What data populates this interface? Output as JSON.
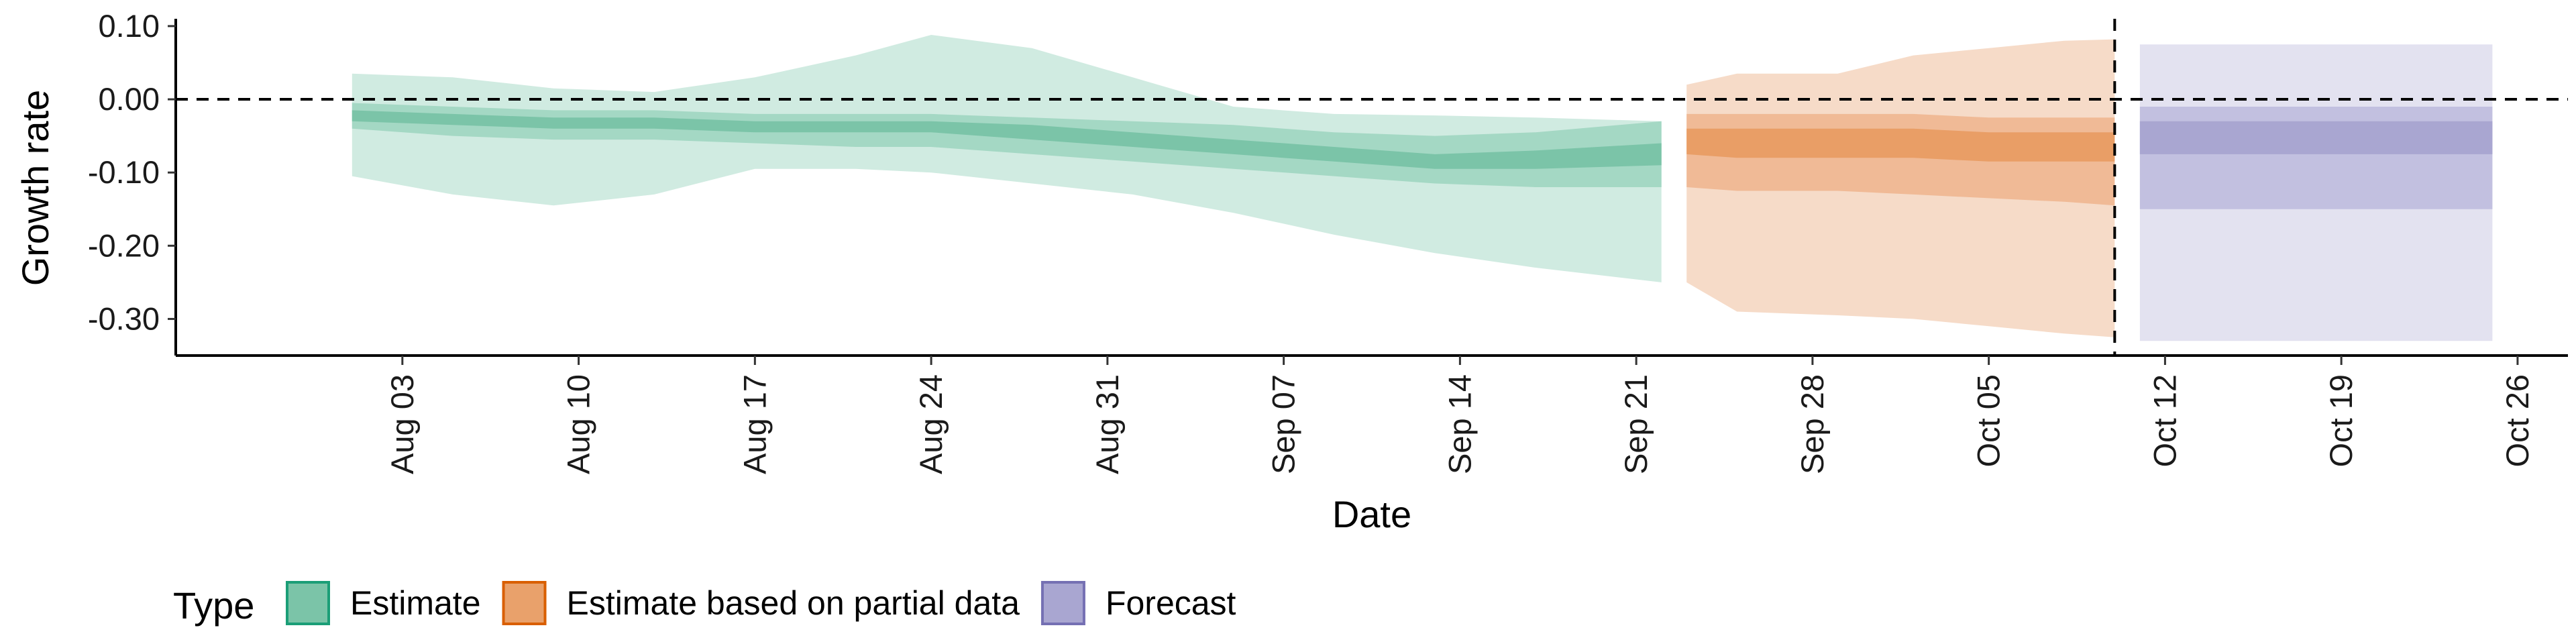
{
  "chart_data": {
    "type": "area",
    "xlabel": "Date",
    "ylabel": "Growth rate",
    "ylim": [
      -0.35,
      0.11
    ],
    "y_ticks": [
      {
        "value": 0.1,
        "label": "0.10"
      },
      {
        "value": 0.0,
        "label": "0.00"
      },
      {
        "value": -0.1,
        "label": "-0.10"
      },
      {
        "value": -0.2,
        "label": "-0.20"
      },
      {
        "value": -0.3,
        "label": "-0.30"
      }
    ],
    "x_range": [
      "2020-07-25",
      "2020-10-28"
    ],
    "x_ticks": [
      {
        "date": "2020-08-03",
        "label": "Aug 03"
      },
      {
        "date": "2020-08-10",
        "label": "Aug 10"
      },
      {
        "date": "2020-08-17",
        "label": "Aug 17"
      },
      {
        "date": "2020-08-24",
        "label": "Aug 24"
      },
      {
        "date": "2020-08-31",
        "label": "Aug 31"
      },
      {
        "date": "2020-09-07",
        "label": "Sep 07"
      },
      {
        "date": "2020-09-14",
        "label": "Sep 14"
      },
      {
        "date": "2020-09-21",
        "label": "Sep 21"
      },
      {
        "date": "2020-09-28",
        "label": "Sep 28"
      },
      {
        "date": "2020-10-05",
        "label": "Oct 05"
      },
      {
        "date": "2020-10-12",
        "label": "Oct 12"
      },
      {
        "date": "2020-10-19",
        "label": "Oct 19"
      },
      {
        "date": "2020-10-26",
        "label": "Oct 26"
      }
    ],
    "reference_lines": [
      {
        "axis": "y",
        "value": 0.0,
        "style": "dashed"
      },
      {
        "axis": "x",
        "date": "2020-10-10",
        "style": "dashed"
      }
    ],
    "grid": false,
    "legend": {
      "title": "Type",
      "position": "bottom",
      "entries": [
        {
          "label": "Estimate",
          "fill": "#7bc4a8",
          "stroke": "#1b9e77"
        },
        {
          "label": "Estimate based on partial data",
          "fill": "#e9a16b",
          "stroke": "#d95f02"
        },
        {
          "label": "Forecast",
          "fill": "#a9a6d1",
          "stroke": "#7570b3"
        }
      ]
    },
    "series": [
      {
        "name": "Estimate",
        "colors": {
          "outer": "#d0ebe1",
          "mid": "#a4d8c4",
          "inner": "#7bc4a8"
        },
        "x": [
          "2020-08-01",
          "2020-08-05",
          "2020-08-09",
          "2020-08-13",
          "2020-08-17",
          "2020-08-21",
          "2020-08-24",
          "2020-08-28",
          "2020-09-01",
          "2020-09-05",
          "2020-09-09",
          "2020-09-13",
          "2020-09-17",
          "2020-09-22"
        ],
        "outer_upper": [
          0.035,
          0.03,
          0.015,
          0.01,
          0.03,
          0.06,
          0.088,
          0.07,
          0.03,
          -0.01,
          -0.02,
          -0.022,
          -0.025,
          -0.03
        ],
        "outer_lower": [
          -0.105,
          -0.13,
          -0.145,
          -0.13,
          -0.095,
          -0.095,
          -0.1,
          -0.115,
          -0.13,
          -0.155,
          -0.185,
          -0.21,
          -0.23,
          -0.25
        ],
        "mid_upper": [
          -0.005,
          -0.01,
          -0.015,
          -0.015,
          -0.02,
          -0.02,
          -0.02,
          -0.025,
          -0.03,
          -0.035,
          -0.045,
          -0.05,
          -0.045,
          -0.03
        ],
        "mid_lower": [
          -0.04,
          -0.05,
          -0.055,
          -0.055,
          -0.06,
          -0.065,
          -0.065,
          -0.075,
          -0.085,
          -0.095,
          -0.105,
          -0.115,
          -0.12,
          -0.12
        ],
        "inner_upper": [
          -0.015,
          -0.02,
          -0.025,
          -0.025,
          -0.03,
          -0.03,
          -0.03,
          -0.035,
          -0.045,
          -0.055,
          -0.065,
          -0.075,
          -0.07,
          -0.06
        ],
        "inner_lower": [
          -0.03,
          -0.035,
          -0.04,
          -0.04,
          -0.045,
          -0.045,
          -0.045,
          -0.055,
          -0.065,
          -0.075,
          -0.085,
          -0.095,
          -0.095,
          -0.09
        ]
      },
      {
        "name": "Estimate based on partial data",
        "colors": {
          "outer": "#f6dbc8",
          "mid": "#f0ba96",
          "inner": "#e99e66"
        },
        "x": [
          "2020-09-23",
          "2020-09-25",
          "2020-09-29",
          "2020-10-02",
          "2020-10-05",
          "2020-10-08",
          "2020-10-10"
        ],
        "outer_upper": [
          0.02,
          0.035,
          0.035,
          0.06,
          0.07,
          0.08,
          0.082
        ],
        "outer_lower": [
          -0.25,
          -0.29,
          -0.295,
          -0.3,
          -0.31,
          -0.32,
          -0.325
        ],
        "mid_upper": [
          -0.02,
          -0.02,
          -0.02,
          -0.02,
          -0.025,
          -0.025,
          -0.025
        ],
        "mid_lower": [
          -0.12,
          -0.125,
          -0.125,
          -0.13,
          -0.135,
          -0.14,
          -0.145
        ],
        "inner_upper": [
          -0.04,
          -0.04,
          -0.04,
          -0.04,
          -0.045,
          -0.045,
          -0.045
        ],
        "inner_lower": [
          -0.075,
          -0.08,
          -0.08,
          -0.08,
          -0.085,
          -0.085,
          -0.085
        ]
      },
      {
        "name": "Forecast",
        "colors": {
          "outer": "#e3e2f0",
          "mid": "#c2c0e0",
          "inner": "#a9a6d1"
        },
        "x": [
          "2020-10-11",
          "2020-10-25"
        ],
        "outer_upper": [
          0.075,
          0.075
        ],
        "outer_lower": [
          -0.33,
          -0.33
        ],
        "mid_upper": [
          -0.01,
          -0.01
        ],
        "mid_lower": [
          -0.15,
          -0.15
        ],
        "inner_upper": [
          -0.03,
          -0.03
        ],
        "inner_lower": [
          -0.075,
          -0.075
        ]
      }
    ]
  }
}
